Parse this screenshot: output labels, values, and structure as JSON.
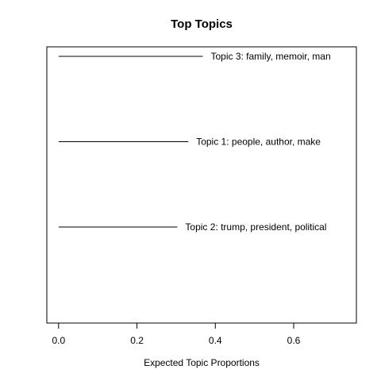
{
  "chart_data": {
    "type": "bar",
    "title": "Top Topics",
    "xlabel": "Expected Topic Proportions",
    "ylabel": "",
    "xlim": [
      -0.03,
      0.76
    ],
    "xticks": [
      0.0,
      0.2,
      0.4,
      0.6
    ],
    "xtick_labels": [
      "0.0",
      "0.2",
      "0.4",
      "0.6"
    ],
    "grid": false,
    "orientation": "horizontal",
    "line_color": "#000000",
    "categories": [
      "Topic 3: family, memoir, man",
      "Topic 1: people, author, make",
      "Topic 2: trump, president, political"
    ],
    "values": [
      0.368,
      0.331,
      0.303
    ]
  }
}
